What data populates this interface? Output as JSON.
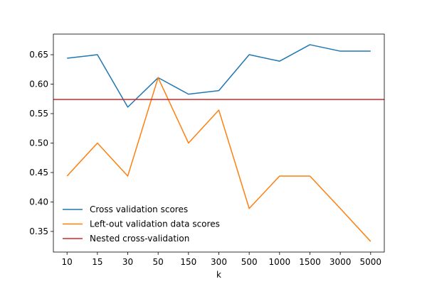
{
  "chart_data": {
    "type": "line",
    "categories": [
      "10",
      "15",
      "30",
      "50",
      "150",
      "300",
      "500",
      "1000",
      "1500",
      "3000",
      "5000"
    ],
    "xlabel": "k",
    "ylabel": "",
    "ylim": [
      0.315,
      0.685
    ],
    "yticks": [
      0.35,
      0.4,
      0.45,
      0.5,
      0.55,
      0.6,
      0.65
    ],
    "ytick_labels": [
      "0.35",
      "0.40",
      "0.45",
      "0.50",
      "0.55",
      "0.60",
      "0.65"
    ],
    "grid": false,
    "legend_position": "lower-left",
    "series": [
      {
        "name": "Cross validation scores",
        "color": "#1f77b4",
        "values": [
          0.644,
          0.65,
          0.561,
          0.611,
          0.583,
          0.589,
          0.65,
          0.639,
          0.667,
          0.656,
          0.656
        ]
      },
      {
        "name": "Left-out validation data scores",
        "color": "#ff7f0e",
        "values": [
          0.444,
          0.5,
          0.444,
          0.611,
          0.5,
          0.556,
          0.389,
          0.444,
          0.444,
          0.389,
          0.333
        ]
      }
    ],
    "hlines": [
      {
        "name": "Nested cross-validation",
        "color": "#d62728",
        "value": 0.574
      }
    ]
  }
}
